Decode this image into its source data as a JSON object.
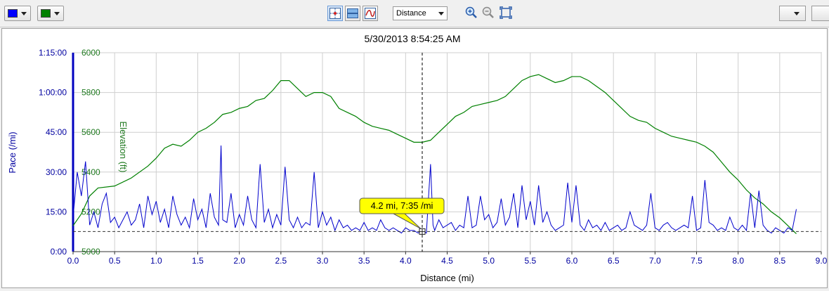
{
  "toolbar": {
    "pace_color": "#0000ff",
    "elevation_color": "#008000",
    "x_axis_select": "Distance",
    "icons": [
      "crosshair-icon",
      "stacked-view-icon",
      "smooth-icon",
      "zoom-in-icon",
      "zoom-out-icon",
      "zoom-fit-icon"
    ]
  },
  "chart_data": {
    "type": "line",
    "title": "5/30/2013 8:54:25 AM",
    "xlabel": "Distance (mi)",
    "xlim": [
      0,
      9
    ],
    "x_ticks": [
      "0.0",
      "0.5",
      "1.0",
      "1.5",
      "2.0",
      "2.5",
      "3.0",
      "3.5",
      "4.0",
      "4.5",
      "5.0",
      "5.5",
      "6.0",
      "6.5",
      "7.0",
      "7.5",
      "8.0",
      "8.5",
      "9.0"
    ],
    "y_axes": [
      {
        "label": "Pace (/mi)",
        "color": "#0000a0",
        "ticks": [
          "0:00",
          "15:00",
          "30:00",
          "45:00",
          "1:00:00",
          "1:15:00"
        ],
        "range_minutes": [
          0,
          75
        ]
      },
      {
        "label": "Elevation (ft)",
        "color": "#207a20",
        "ticks": [
          "5000",
          "5200",
          "5400",
          "5600",
          "5800",
          "6000"
        ],
        "range": [
          5000,
          6000
        ]
      }
    ],
    "series": [
      {
        "name": "Elevation (ft)",
        "color": "#008000",
        "x": [
          0.0,
          0.1,
          0.2,
          0.3,
          0.5,
          0.7,
          0.9,
          1.0,
          1.1,
          1.2,
          1.3,
          1.4,
          1.5,
          1.6,
          1.7,
          1.8,
          1.9,
          2.0,
          2.1,
          2.2,
          2.3,
          2.4,
          2.5,
          2.6,
          2.7,
          2.8,
          2.9,
          3.0,
          3.1,
          3.2,
          3.3,
          3.4,
          3.5,
          3.6,
          3.7,
          3.8,
          3.9,
          4.0,
          4.1,
          4.2,
          4.3,
          4.4,
          4.5,
          4.6,
          4.7,
          4.8,
          4.9,
          5.0,
          5.1,
          5.2,
          5.3,
          5.4,
          5.5,
          5.6,
          5.7,
          5.8,
          5.9,
          6.0,
          6.1,
          6.2,
          6.3,
          6.4,
          6.5,
          6.6,
          6.7,
          6.8,
          6.9,
          7.0,
          7.1,
          7.2,
          7.3,
          7.4,
          7.5,
          7.6,
          7.7,
          7.8,
          7.9,
          8.0,
          8.1,
          8.2,
          8.3,
          8.4,
          8.5,
          8.6,
          8.7
        ],
        "values": [
          5130,
          5190,
          5280,
          5320,
          5330,
          5370,
          5430,
          5470,
          5520,
          5540,
          5530,
          5560,
          5600,
          5620,
          5650,
          5690,
          5700,
          5720,
          5730,
          5760,
          5770,
          5810,
          5860,
          5860,
          5820,
          5780,
          5800,
          5800,
          5780,
          5720,
          5700,
          5680,
          5650,
          5630,
          5620,
          5610,
          5590,
          5570,
          5550,
          5550,
          5560,
          5600,
          5640,
          5680,
          5700,
          5730,
          5740,
          5750,
          5760,
          5780,
          5820,
          5860,
          5880,
          5890,
          5870,
          5850,
          5860,
          5880,
          5880,
          5860,
          5830,
          5800,
          5760,
          5720,
          5680,
          5660,
          5650,
          5620,
          5600,
          5580,
          5570,
          5560,
          5550,
          5530,
          5500,
          5450,
          5400,
          5360,
          5310,
          5270,
          5240,
          5200,
          5170,
          5130,
          5090
        ],
        "y_unit": "ft"
      },
      {
        "name": "Pace (/mi)",
        "color": "#0000cc",
        "x": [
          0.0,
          0.05,
          0.1,
          0.15,
          0.2,
          0.25,
          0.3,
          0.35,
          0.4,
          0.45,
          0.5,
          0.55,
          0.6,
          0.65,
          0.7,
          0.75,
          0.8,
          0.85,
          0.9,
          0.95,
          1.0,
          1.05,
          1.1,
          1.15,
          1.2,
          1.25,
          1.3,
          1.35,
          1.4,
          1.45,
          1.5,
          1.55,
          1.6,
          1.65,
          1.7,
          1.75,
          1.78,
          1.8,
          1.85,
          1.9,
          1.95,
          2.0,
          2.05,
          2.1,
          2.15,
          2.2,
          2.25,
          2.3,
          2.35,
          2.4,
          2.45,
          2.5,
          2.55,
          2.6,
          2.65,
          2.7,
          2.75,
          2.8,
          2.85,
          2.9,
          2.95,
          3.0,
          3.05,
          3.1,
          3.15,
          3.2,
          3.25,
          3.3,
          3.35,
          3.4,
          3.45,
          3.5,
          3.55,
          3.6,
          3.65,
          3.7,
          3.75,
          3.8,
          3.85,
          3.9,
          3.95,
          4.0,
          4.05,
          4.1,
          4.15,
          4.2,
          4.25,
          4.3,
          4.33,
          4.35,
          4.4,
          4.45,
          4.5,
          4.55,
          4.6,
          4.65,
          4.7,
          4.75,
          4.8,
          4.85,
          4.9,
          4.95,
          5.0,
          5.05,
          5.1,
          5.15,
          5.2,
          5.25,
          5.3,
          5.35,
          5.4,
          5.45,
          5.5,
          5.55,
          5.6,
          5.65,
          5.7,
          5.75,
          5.8,
          5.85,
          5.9,
          5.95,
          6.0,
          6.05,
          6.1,
          6.15,
          6.2,
          6.25,
          6.3,
          6.35,
          6.4,
          6.45,
          6.5,
          6.55,
          6.6,
          6.65,
          6.7,
          6.75,
          6.8,
          6.85,
          6.9,
          6.95,
          7.0,
          7.05,
          7.1,
          7.15,
          7.2,
          7.25,
          7.3,
          7.35,
          7.4,
          7.45,
          7.5,
          7.55,
          7.6,
          7.65,
          7.7,
          7.75,
          7.8,
          7.85,
          7.9,
          7.95,
          8.0,
          8.05,
          8.1,
          8.15,
          8.2,
          8.25,
          8.3,
          8.35,
          8.4,
          8.45,
          8.5,
          8.55,
          8.6,
          8.65,
          8.7
        ],
        "values": [
          13,
          30,
          21,
          34,
          10,
          15,
          9,
          18,
          22,
          11,
          13,
          9,
          12,
          15,
          10,
          12,
          18,
          9,
          21,
          14,
          19,
          11,
          16,
          9,
          21,
          14,
          10,
          13,
          9,
          20,
          12,
          16,
          9,
          22,
          13,
          10,
          40,
          12,
          11,
          22,
          9,
          14,
          10,
          21,
          12,
          9,
          33,
          11,
          16,
          9,
          14,
          10,
          32,
          12,
          9,
          13,
          9,
          11,
          10,
          30,
          9,
          15,
          10,
          13,
          8,
          12,
          9,
          10,
          8,
          9,
          8,
          11,
          8,
          9,
          8,
          12,
          9,
          8,
          9,
          8,
          7,
          9,
          8,
          8,
          7,
          8,
          7,
          33,
          10,
          8,
          12,
          9,
          10,
          11,
          8,
          10,
          9,
          21,
          9,
          10,
          21,
          12,
          14,
          9,
          11,
          20,
          10,
          13,
          22,
          9,
          25,
          12,
          19,
          10,
          25,
          11,
          15,
          10,
          8,
          9,
          10,
          26,
          11,
          25,
          10,
          8,
          12,
          9,
          10,
          8,
          11,
          8,
          9,
          10,
          8,
          9,
          15,
          10,
          9,
          8,
          10,
          22,
          9,
          8,
          10,
          11,
          9,
          8,
          9,
          10,
          9,
          21,
          8,
          9,
          27,
          11,
          10,
          8,
          9,
          8,
          13,
          9,
          8,
          10,
          8,
          22,
          9,
          23,
          10,
          8,
          7,
          9,
          8,
          7,
          9,
          8,
          16
        ],
        "y_unit": "minutes per mile"
      }
    ],
    "reference_line_pace_minutes": 7.58,
    "cursor_x": 4.2,
    "tooltip": "4.2 mi, 7:35 /mi",
    "grid": true
  }
}
